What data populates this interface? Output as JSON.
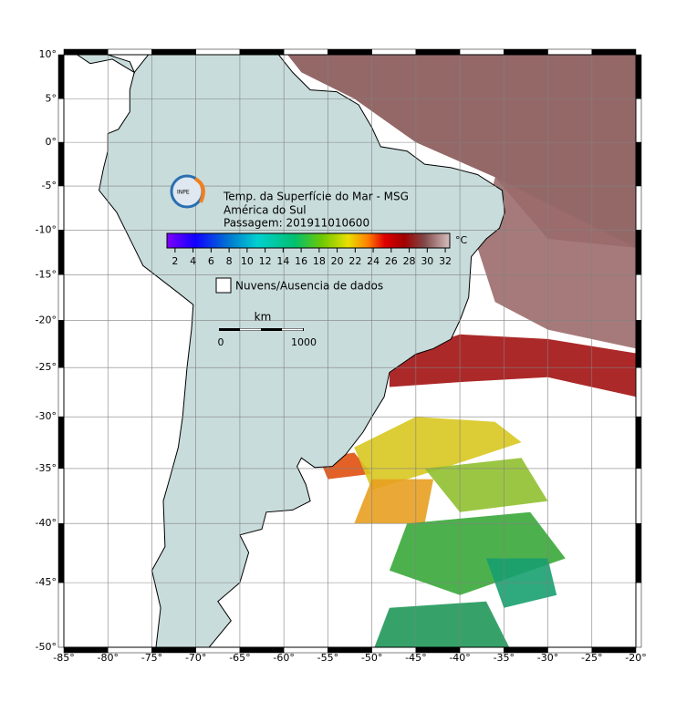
{
  "map": {
    "title_lines": [
      "Temp. da Superfície do Mar - MSG",
      "América do Sul",
      "Passagem: 201911010600"
    ],
    "logo_text": "INPE",
    "lon_range": [
      -85,
      -20
    ],
    "lat_range": [
      -50,
      10
    ],
    "lon_ticks": [
      {
        "value": -85,
        "label": "-85°"
      },
      {
        "value": -80,
        "label": "-80°"
      },
      {
        "value": -75,
        "label": "-75°"
      },
      {
        "value": -70,
        "label": "-70°"
      },
      {
        "value": -65,
        "label": "-65°"
      },
      {
        "value": -60,
        "label": "-60°"
      },
      {
        "value": -55,
        "label": "-55°"
      },
      {
        "value": -50,
        "label": "-50°"
      },
      {
        "value": -45,
        "label": "-45°"
      },
      {
        "value": -40,
        "label": "-40°"
      },
      {
        "value": -35,
        "label": "-35°"
      },
      {
        "value": -30,
        "label": "-30°"
      },
      {
        "value": -25,
        "label": "-25°"
      },
      {
        "value": -20,
        "label": "-20°"
      }
    ],
    "lat_ticks": [
      {
        "value": 10,
        "label": "10°"
      },
      {
        "value": 5,
        "label": "5°"
      },
      {
        "value": 0,
        "label": "0°"
      },
      {
        "value": -5,
        "label": "-5°"
      },
      {
        "value": -10,
        "label": "-10°"
      },
      {
        "value": -15,
        "label": "-15°"
      },
      {
        "value": -20,
        "label": "-20°"
      },
      {
        "value": -25,
        "label": "-25°"
      },
      {
        "value": -30,
        "label": "-30°"
      },
      {
        "value": -35,
        "label": "-35°"
      },
      {
        "value": -40,
        "label": "-40°"
      },
      {
        "value": -45,
        "label": "-45°"
      },
      {
        "value": -50,
        "label": "-50°"
      }
    ],
    "colorbar": {
      "range": [
        1.1,
        32.5
      ],
      "ticks": [
        2,
        4,
        6,
        8,
        10,
        12,
        14,
        16,
        18,
        20,
        22,
        24,
        26,
        28,
        30,
        32
      ],
      "unit": "°C"
    },
    "legend_label": "Nuvens/Ausencia de dados",
    "scale_bar": {
      "unit": "km",
      "labels": [
        "0",
        "1000"
      ]
    }
  }
}
